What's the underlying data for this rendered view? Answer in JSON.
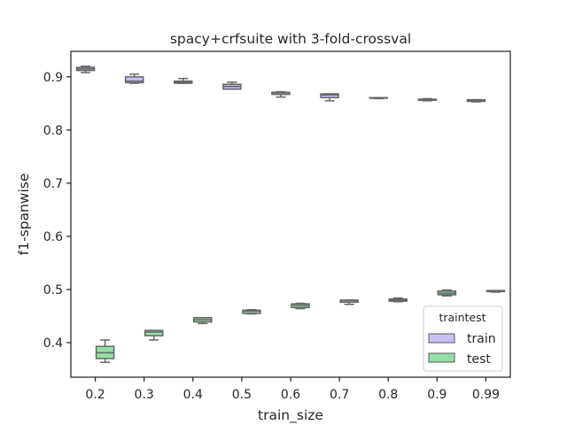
{
  "chart_data": {
    "type": "box",
    "title": "spacy+crfsuite with 3-fold-crossval",
    "xlabel": "train_size",
    "ylabel": "f1-spanwise",
    "categories": [
      "0.2",
      "0.3",
      "0.4",
      "0.5",
      "0.6",
      "0.7",
      "0.8",
      "0.9",
      "0.99"
    ],
    "ylim": [
      0.335,
      0.948
    ],
    "yticks": [
      "0.4",
      "0.5",
      "0.6",
      "0.7",
      "0.8",
      "0.9"
    ],
    "grid": false,
    "legend": {
      "title": "traintest",
      "placement": "lower-right"
    },
    "series": [
      {
        "name": "train",
        "color": "#cbbff7",
        "boxes": [
          {
            "min": 0.908,
            "q1": 0.912,
            "median": 0.915,
            "q3": 0.918,
            "max": 0.92
          },
          {
            "min": 0.888,
            "q1": 0.889,
            "median": 0.892,
            "q3": 0.9,
            "max": 0.905
          },
          {
            "min": 0.888,
            "q1": 0.888,
            "median": 0.89,
            "q3": 0.892,
            "max": 0.897
          },
          {
            "min": 0.877,
            "q1": 0.877,
            "median": 0.882,
            "q3": 0.886,
            "max": 0.89
          },
          {
            "min": 0.862,
            "q1": 0.867,
            "median": 0.87,
            "q3": 0.871,
            "max": 0.872
          },
          {
            "min": 0.855,
            "q1": 0.861,
            "median": 0.866,
            "q3": 0.868,
            "max": 0.868
          },
          {
            "min": 0.859,
            "q1": 0.86,
            "median": 0.86,
            "q3": 0.861,
            "max": 0.861
          },
          {
            "min": 0.855,
            "q1": 0.856,
            "median": 0.857,
            "q3": 0.858,
            "max": 0.859
          },
          {
            "min": 0.853,
            "q1": 0.854,
            "median": 0.855,
            "q3": 0.857,
            "max": 0.857
          }
        ]
      },
      {
        "name": "test",
        "color": "#95dea8",
        "boxes": [
          {
            "min": 0.363,
            "q1": 0.37,
            "median": 0.381,
            "q3": 0.393,
            "max": 0.405
          },
          {
            "min": 0.405,
            "q1": 0.413,
            "median": 0.42,
            "q3": 0.423,
            "max": 0.423
          },
          {
            "min": 0.436,
            "q1": 0.439,
            "median": 0.443,
            "q3": 0.447,
            "max": 0.447
          },
          {
            "min": 0.454,
            "q1": 0.455,
            "median": 0.459,
            "q3": 0.461,
            "max": 0.462
          },
          {
            "min": 0.464,
            "q1": 0.466,
            "median": 0.47,
            "q3": 0.473,
            "max": 0.474
          },
          {
            "min": 0.472,
            "q1": 0.476,
            "median": 0.479,
            "q3": 0.48,
            "max": 0.48
          },
          {
            "min": 0.477,
            "q1": 0.478,
            "median": 0.48,
            "q3": 0.482,
            "max": 0.484
          },
          {
            "min": 0.488,
            "q1": 0.49,
            "median": 0.493,
            "q3": 0.497,
            "max": 0.499
          },
          {
            "min": 0.495,
            "q1": 0.496,
            "median": 0.497,
            "q3": 0.498,
            "max": 0.498
          }
        ]
      }
    ]
  }
}
